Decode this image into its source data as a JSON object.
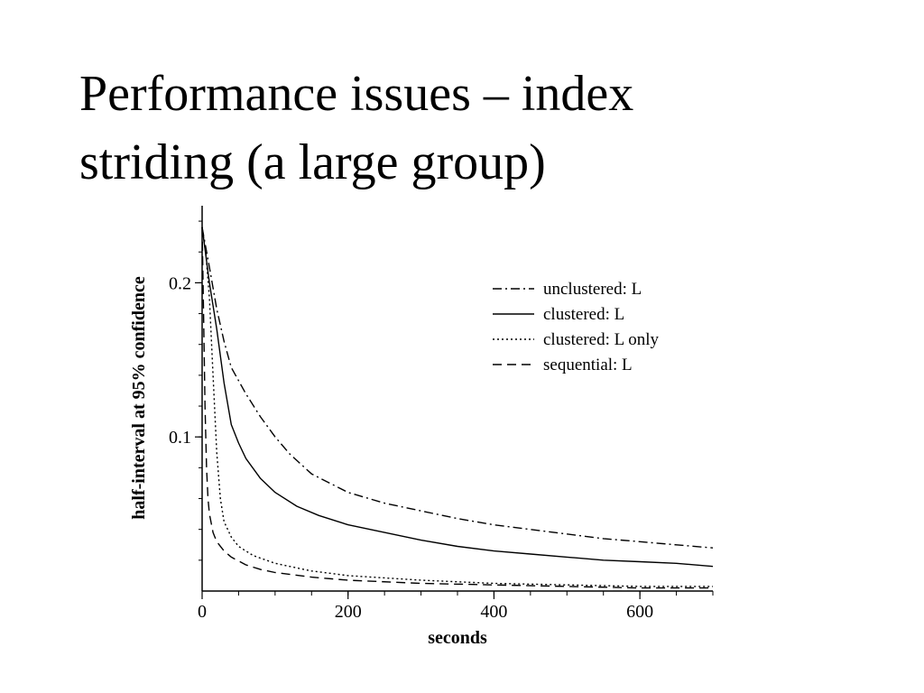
{
  "slide": {
    "title_line1": "Performance issues – index",
    "title_line2": "striding (a large group)"
  },
  "chart_data": {
    "type": "line",
    "title": "",
    "xlabel": "seconds",
    "ylabel": "half-interval at 95% confidence",
    "xlim": [
      0,
      700
    ],
    "ylim": [
      0,
      0.25
    ],
    "xticks": [
      {
        "value": 0,
        "label": "0"
      },
      {
        "value": 200,
        "label": "200"
      },
      {
        "value": 400,
        "label": "400"
      },
      {
        "value": 600,
        "label": "600"
      }
    ],
    "yticks": [
      {
        "value": 0.1,
        "label": "0.1"
      },
      {
        "value": 0.2,
        "label": "0.2"
      }
    ],
    "grid": false,
    "legend": {
      "position": "top-right"
    },
    "series": [
      {
        "name": "unclustered: L",
        "style": "dashdot",
        "x": [
          0,
          10,
          20,
          30,
          40,
          60,
          80,
          100,
          120,
          150,
          200,
          250,
          300,
          350,
          400,
          450,
          500,
          550,
          600,
          650,
          700
        ],
        "y": [
          0.236,
          0.21,
          0.183,
          0.162,
          0.145,
          0.128,
          0.113,
          0.1,
          0.089,
          0.076,
          0.064,
          0.057,
          0.052,
          0.047,
          0.043,
          0.04,
          0.037,
          0.034,
          0.032,
          0.03,
          0.028
        ]
      },
      {
        "name": "clustered: L",
        "style": "solid",
        "x": [
          0,
          10,
          20,
          30,
          40,
          50,
          60,
          80,
          100,
          130,
          160,
          200,
          250,
          300,
          350,
          400,
          450,
          500,
          550,
          600,
          650,
          700
        ],
        "y": [
          0.236,
          0.2,
          0.17,
          0.135,
          0.108,
          0.096,
          0.086,
          0.073,
          0.064,
          0.055,
          0.049,
          0.043,
          0.038,
          0.033,
          0.029,
          0.026,
          0.024,
          0.022,
          0.02,
          0.019,
          0.018,
          0.016
        ]
      },
      {
        "name": "clustered: L only",
        "style": "dotted",
        "x": [
          0,
          5,
          10,
          15,
          20,
          25,
          30,
          40,
          50,
          70,
          100,
          150,
          200,
          300,
          400,
          500,
          600,
          700
        ],
        "y": [
          0.236,
          0.22,
          0.19,
          0.14,
          0.09,
          0.06,
          0.045,
          0.035,
          0.029,
          0.023,
          0.018,
          0.013,
          0.01,
          0.007,
          0.005,
          0.004,
          0.003,
          0.003
        ]
      },
      {
        "name": "sequential: L",
        "style": "dashed",
        "x": [
          0,
          2,
          4,
          6,
          8,
          10,
          15,
          20,
          30,
          40,
          60,
          80,
          100,
          150,
          200,
          300,
          400,
          500,
          600,
          700
        ],
        "y": [
          0.236,
          0.18,
          0.12,
          0.08,
          0.06,
          0.05,
          0.038,
          0.032,
          0.026,
          0.022,
          0.017,
          0.014,
          0.012,
          0.009,
          0.007,
          0.005,
          0.004,
          0.003,
          0.002,
          0.002
        ]
      }
    ]
  }
}
